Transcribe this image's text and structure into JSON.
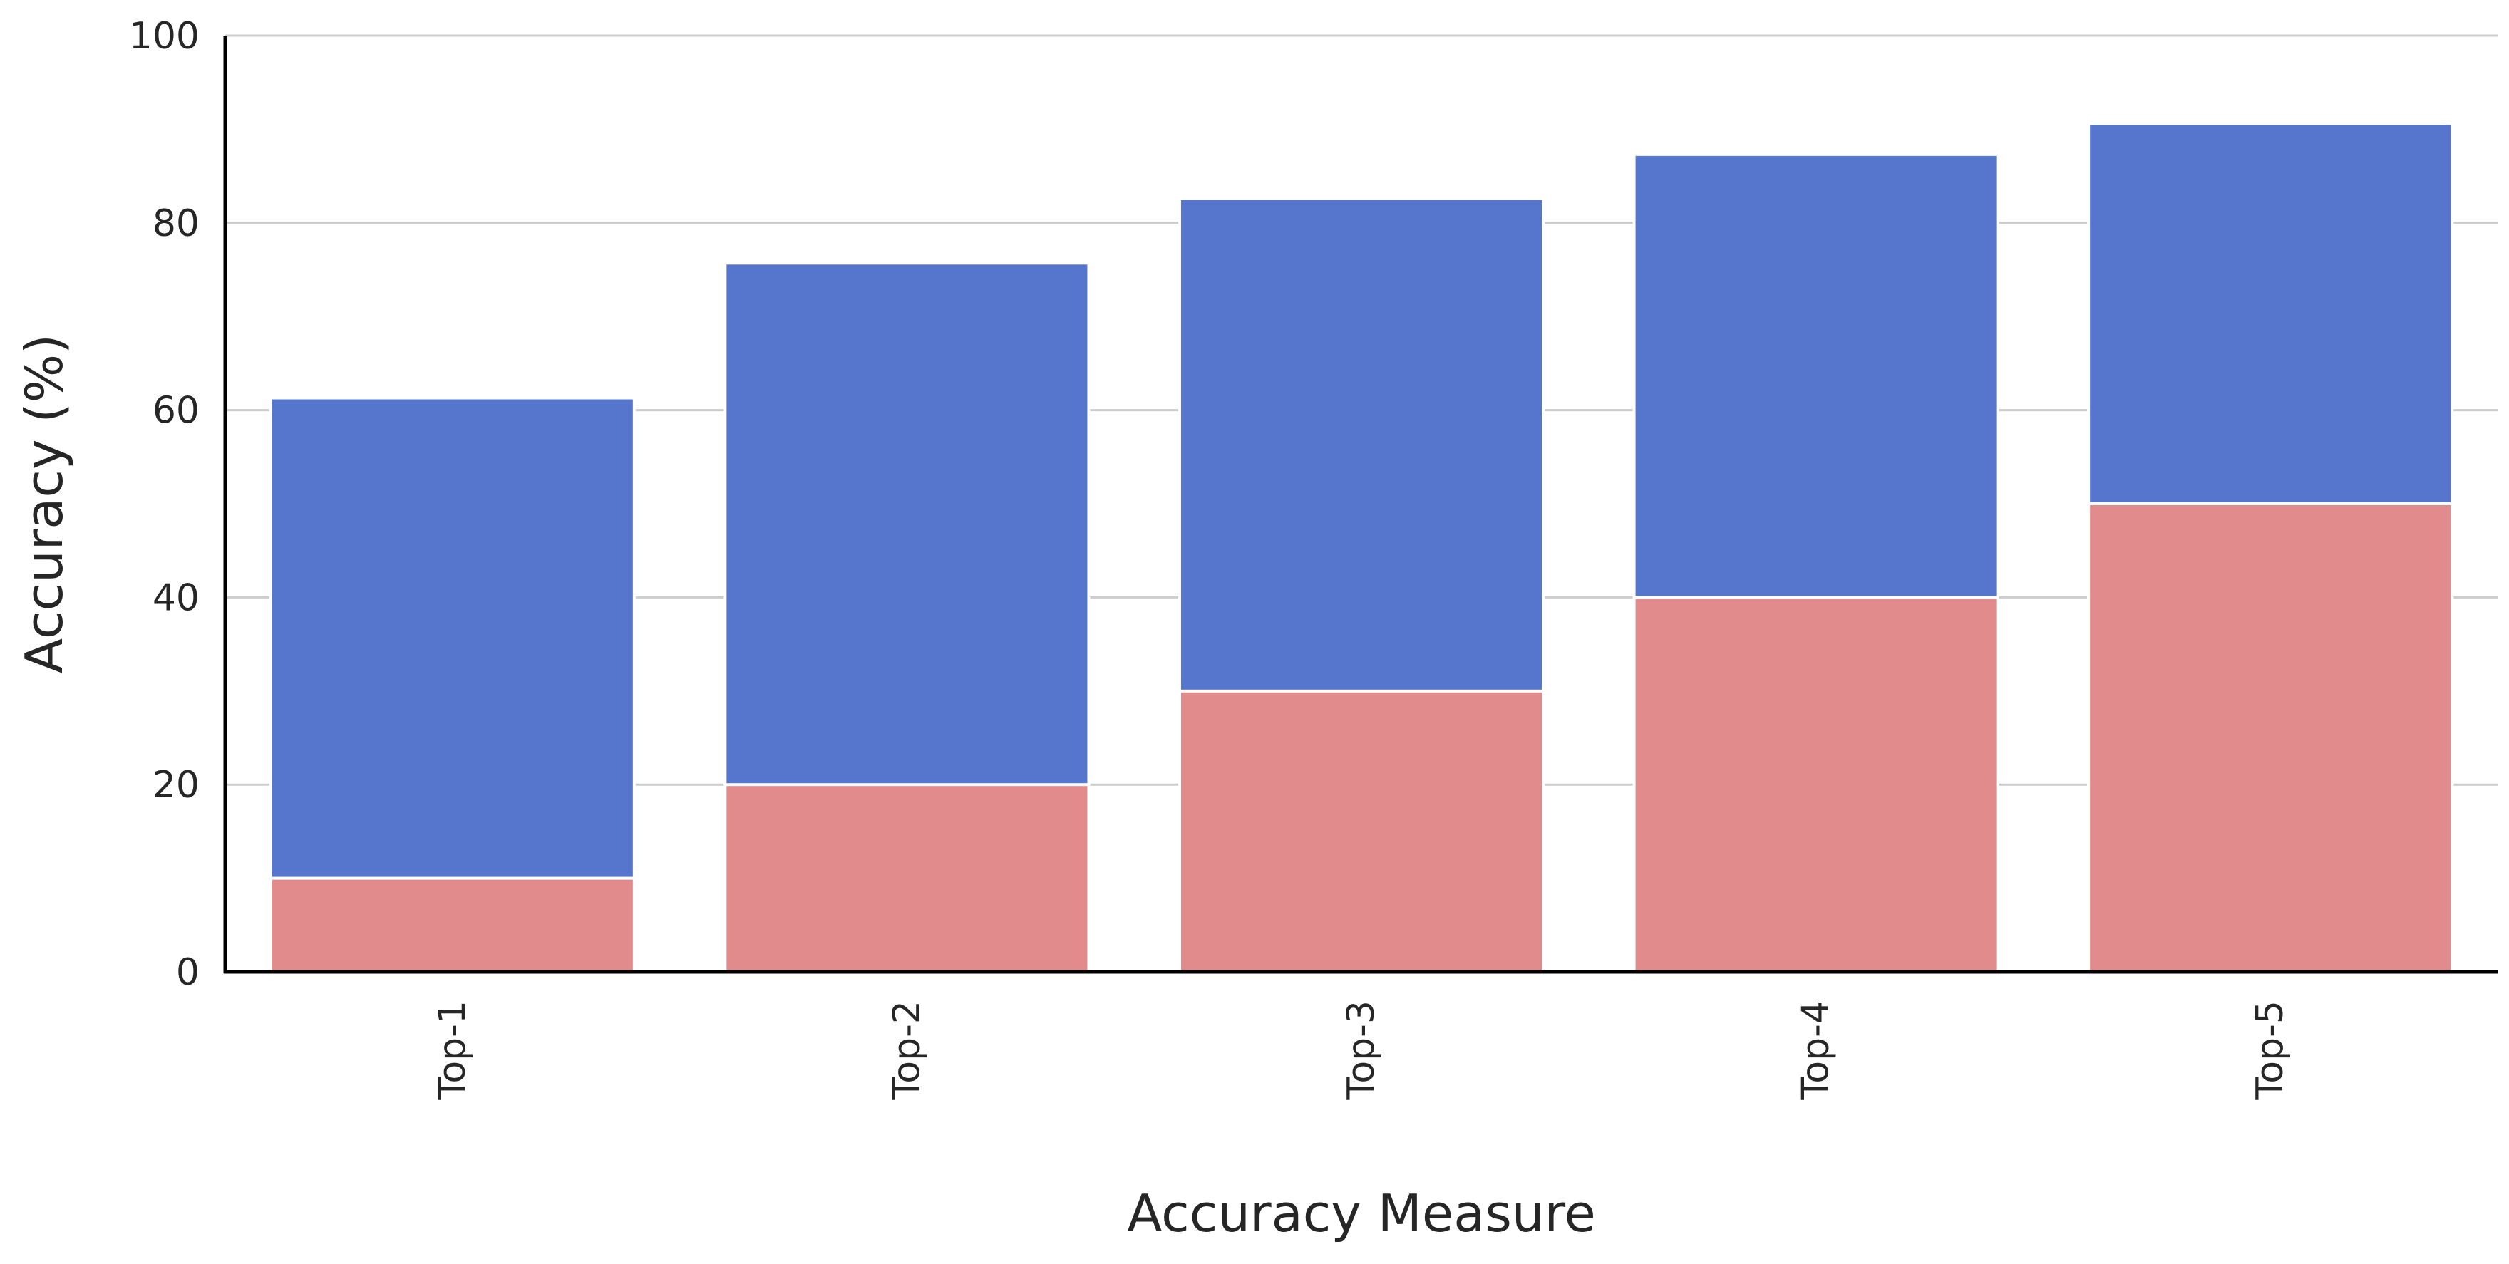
{
  "chart_data": {
    "type": "bar",
    "stacked": false,
    "overlapping": true,
    "categories": [
      "Top-1",
      "Top-2",
      "Top-3",
      "Top-4",
      "Top-5"
    ],
    "series": [
      {
        "values": [
          61.3,
          75.7,
          82.6,
          87.3,
          90.6
        ],
        "color": "#5675cc"
      },
      {
        "values": [
          10,
          20,
          30,
          40,
          50
        ],
        "color": "#e18b8d"
      }
    ],
    "title": "",
    "xlabel": "Accuracy Measure",
    "ylabel": "Accuracy (%)",
    "ylim": [
      0,
      100
    ],
    "yticks": [
      0,
      20,
      40,
      60,
      80,
      100
    ],
    "grid": "y",
    "legend": "none"
  }
}
